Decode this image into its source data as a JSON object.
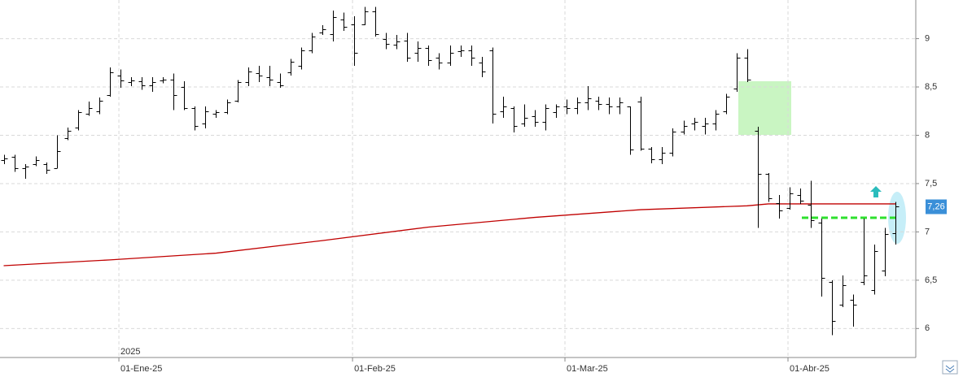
{
  "chart_data": {
    "type": "ohlc",
    "categories": [
      null,
      null,
      null,
      null,
      null,
      null,
      null,
      null,
      null,
      null,
      null,
      "01-Ene-25",
      null,
      null,
      null,
      null,
      null,
      null,
      null,
      null,
      null,
      null,
      null,
      null,
      null,
      null,
      null,
      null,
      null,
      null,
      null,
      null,
      null,
      "01-Feb-25",
      null,
      null,
      null,
      null,
      null,
      null,
      null,
      null,
      null,
      null,
      null,
      null,
      null,
      null,
      null,
      null,
      null,
      null,
      null,
      "01-Mar-25",
      null,
      null,
      null,
      null,
      null,
      null,
      null,
      null,
      null,
      null,
      null,
      null,
      null,
      null,
      null,
      null,
      null,
      null,
      null,
      null,
      "01-Abr-25",
      null,
      null,
      null,
      null,
      null,
      null,
      null,
      null,
      null,
      null
    ],
    "open": [
      7.74,
      7.78,
      7.66,
      7.7,
      7.7,
      7.66,
      7.97,
      8.08,
      8.22,
      8.25,
      8.42,
      8.62,
      8.55,
      8.56,
      8.52,
      8.57,
      8.58,
      8.5,
      8.28,
      8.12,
      8.22,
      8.24,
      8.36,
      8.55,
      8.64,
      8.6,
      8.55,
      8.65,
      8.72,
      8.88,
      9.06,
      9.05,
      9.2,
      9.15,
      9.15,
      9.28,
      9.0,
      8.94,
      8.98,
      8.85,
      8.9,
      8.8,
      8.75,
      8.87,
      8.88,
      8.75,
      8.88,
      8.25,
      8.28,
      8.12,
      8.2,
      8.14,
      8.24,
      8.3,
      8.28,
      8.34,
      8.36,
      8.32,
      8.3,
      8.3,
      8.35,
      7.86,
      7.75,
      7.82,
      8.04,
      8.12,
      8.1,
      8.12,
      8.25,
      8.48,
      8.8,
      8.05,
      7.6,
      7.3,
      7.25,
      7.38,
      7.28,
      7.1,
      6.48,
      6.25,
      6.3,
      6.48,
      6.4,
      6.6,
      6.99
    ],
    "high": [
      7.8,
      7.8,
      7.7,
      7.78,
      7.72,
      8.0,
      8.08,
      8.26,
      8.35,
      8.39,
      8.7,
      8.68,
      8.6,
      8.6,
      8.6,
      8.6,
      8.64,
      8.56,
      8.3,
      8.3,
      8.26,
      8.37,
      8.57,
      8.7,
      8.72,
      8.72,
      8.64,
      8.79,
      8.91,
      9.06,
      9.14,
      9.29,
      9.27,
      9.23,
      9.33,
      9.33,
      9.06,
      9.04,
      9.06,
      8.97,
      8.93,
      8.85,
      8.93,
      8.93,
      8.93,
      8.81,
      8.91,
      8.4,
      8.3,
      8.32,
      8.26,
      8.32,
      8.32,
      8.37,
      8.39,
      8.51,
      8.4,
      8.39,
      8.39,
      8.3,
      8.4,
      7.88,
      7.88,
      8.07,
      8.15,
      8.18,
      8.18,
      8.26,
      8.43,
      8.85,
      8.89,
      8.09,
      7.61,
      7.38,
      7.46,
      7.45,
      7.53,
      7.14,
      6.5,
      6.55,
      6.35,
      7.14,
      6.87,
      7.04,
      7.31
    ],
    "low": [
      7.7,
      7.62,
      7.55,
      7.68,
      7.6,
      7.66,
      7.95,
      8.05,
      8.2,
      8.22,
      8.4,
      8.49,
      8.51,
      8.47,
      8.45,
      8.54,
      8.26,
      8.26,
      8.05,
      8.07,
      8.18,
      8.22,
      8.34,
      8.51,
      8.55,
      8.51,
      8.49,
      8.62,
      8.68,
      8.85,
      9.04,
      8.97,
      9.08,
      8.72,
      9.14,
      9.02,
      8.89,
      8.89,
      8.76,
      8.76,
      8.72,
      8.68,
      8.72,
      8.81,
      8.72,
      8.6,
      8.12,
      8.18,
      8.03,
      8.09,
      8.09,
      8.05,
      8.18,
      8.22,
      8.22,
      8.26,
      8.26,
      8.22,
      8.22,
      7.8,
      7.84,
      7.71,
      7.7,
      7.78,
      8.01,
      8.05,
      8.01,
      8.05,
      8.22,
      8.45,
      8.55,
      7.04,
      7.31,
      7.14,
      7.23,
      7.29,
      7.04,
      6.33,
      5.93,
      6.22,
      6.02,
      6.45,
      6.35,
      6.54,
      6.87
    ],
    "close": [
      7.76,
      7.66,
      7.68,
      7.74,
      7.64,
      7.84,
      8.05,
      8.24,
      8.28,
      8.36,
      8.65,
      8.57,
      8.57,
      8.52,
      8.55,
      8.58,
      8.42,
      8.28,
      8.1,
      8.25,
      8.24,
      8.34,
      8.55,
      8.66,
      8.62,
      8.58,
      8.52,
      8.76,
      8.88,
      9.02,
      9.1,
      9.22,
      9.12,
      8.85,
      9.28,
      9.05,
      8.95,
      8.97,
      8.8,
      8.9,
      8.78,
      8.75,
      8.85,
      8.88,
      8.8,
      8.66,
      8.22,
      8.3,
      8.1,
      8.18,
      8.14,
      8.28,
      8.3,
      8.28,
      8.34,
      8.38,
      8.32,
      8.3,
      8.34,
      7.85,
      7.86,
      7.75,
      7.82,
      8.04,
      8.1,
      8.14,
      8.12,
      8.22,
      8.4,
      8.8,
      8.58,
      7.6,
      7.35,
      7.22,
      7.4,
      7.32,
      7.12,
      6.52,
      6.08,
      6.45,
      6.25,
      6.55,
      6.8,
      6.98,
      7.26
    ],
    "color": "#000000",
    "moving_average": {
      "color": "#c00000",
      "x": [
        0,
        10,
        20,
        30,
        40,
        50,
        60,
        70,
        72,
        84
      ],
      "values": [
        6.65,
        6.71,
        6.78,
        6.91,
        7.05,
        7.15,
        7.23,
        7.27,
        7.29,
        7.29
      ]
    },
    "ylim": [
      5.7,
      9.4
    ],
    "yticks": [
      6,
      {
        "value": 6.5,
        "label": "6,5"
      },
      7,
      {
        "value": 7.5,
        "label": "7,5"
      },
      8,
      {
        "value": 8.5,
        "label": "8,5"
      },
      9
    ],
    "grid": true,
    "year_label": "2025",
    "last_price": {
      "value": 7.26,
      "label": "7,26",
      "color": "#3a8fd8"
    }
  }
}
